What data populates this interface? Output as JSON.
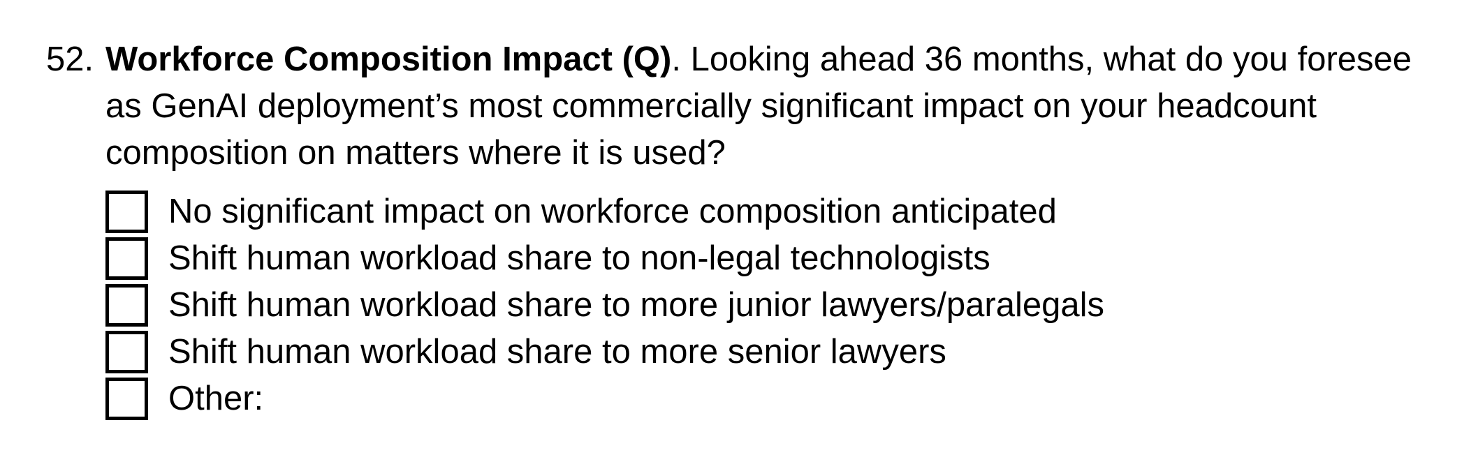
{
  "question": {
    "number": "52.",
    "title": "Workforce Composition Impact (Q)",
    "text": ". Looking ahead 36 months, what do you foresee as GenAI deployment’s most commercially significant impact on your headcount composition on matters where it is used?"
  },
  "options": [
    {
      "label": "No significant impact on workforce composition anticipated",
      "checked": false
    },
    {
      "label": "Shift human workload share to non-legal technologists",
      "checked": false
    },
    {
      "label": "Shift human workload share to more junior lawyers/paralegals",
      "checked": false
    },
    {
      "label": "Shift human workload share to more senior lawyers",
      "checked": false
    },
    {
      "label": "Other:",
      "checked": false
    }
  ]
}
